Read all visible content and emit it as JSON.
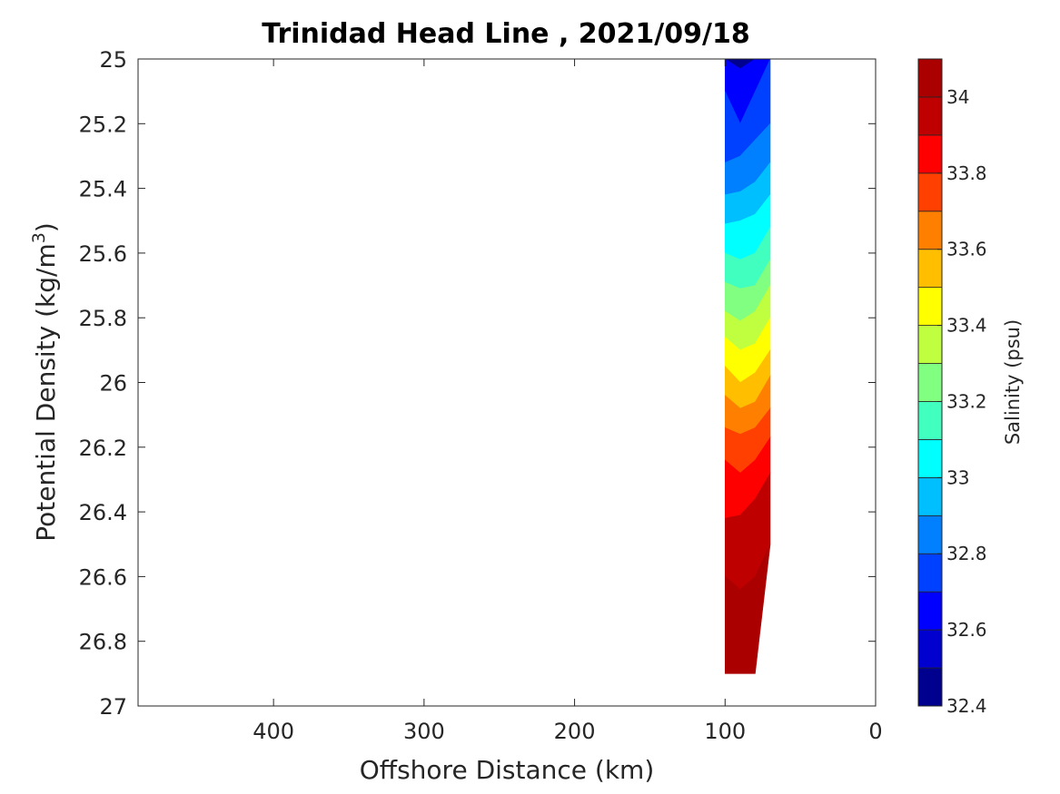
{
  "chart_data": {
    "type": "heatmap",
    "title": "Trinidad Head Line , 2021/09/18",
    "xlabel": "Offshore Distance (km)",
    "ylabel": "Potential Density (kg/m3)",
    "ylabel_parts": {
      "main": "Potential Density (kg/m",
      "sup": "3",
      "close": ")"
    },
    "xlim": [
      490,
      0
    ],
    "ylim": [
      25,
      27
    ],
    "x_reversed": true,
    "y_reversed": true,
    "xticks": [
      400,
      300,
      200,
      100,
      0
    ],
    "xtick_labels": [
      "400",
      "300",
      "200",
      "100",
      "0"
    ],
    "yticks": [
      25,
      25.2,
      25.4,
      25.6,
      25.8,
      26,
      26.2,
      26.4,
      26.6,
      26.8,
      27
    ],
    "ytick_labels": [
      "25",
      "25.2",
      "25.4",
      "25.6",
      "25.8",
      "26",
      "26.2",
      "26.4",
      "26.6",
      "26.8",
      "27"
    ],
    "grid": false,
    "stations_x_km": [
      100,
      90,
      80,
      70
    ],
    "density_bottom_kg_m3": [
      26.9,
      26.9,
      26.9,
      26.5
    ],
    "contour_levels": [
      32.4,
      32.5,
      32.6,
      32.7,
      32.8,
      32.9,
      33.0,
      33.1,
      33.2,
      33.3,
      33.4,
      33.5,
      33.6,
      33.7,
      33.8,
      33.9,
      34.0,
      34.1
    ],
    "contour_colors": [
      "#00008f",
      "#0000cf",
      "#0000ff",
      "#0040ff",
      "#0080ff",
      "#00bfff",
      "#00ffff",
      "#40ffbf",
      "#80ff80",
      "#bfff40",
      "#ffff00",
      "#ffbf00",
      "#ff8000",
      "#ff4000",
      "#ff0000",
      "#bf0000",
      "#aa0000"
    ],
    "band_boundaries": [
      {
        "level": 32.6,
        "density": [
          25.0,
          25.03,
          25.0,
          25.0
        ]
      },
      {
        "level": 32.7,
        "density": [
          25.1,
          25.2,
          25.1,
          25.0
        ]
      },
      {
        "level": 32.8,
        "density": [
          25.32,
          25.3,
          25.25,
          25.2
        ]
      },
      {
        "level": 32.9,
        "density": [
          25.42,
          25.41,
          25.38,
          25.32
        ]
      },
      {
        "level": 33.0,
        "density": [
          25.51,
          25.5,
          25.48,
          25.42
        ]
      },
      {
        "level": 33.1,
        "density": [
          25.6,
          25.62,
          25.6,
          25.52
        ]
      },
      {
        "level": 33.2,
        "density": [
          25.69,
          25.71,
          25.7,
          25.62
        ]
      },
      {
        "level": 33.3,
        "density": [
          25.78,
          25.81,
          25.78,
          25.7
        ]
      },
      {
        "level": 33.4,
        "density": [
          25.86,
          25.9,
          25.88,
          25.8
        ]
      },
      {
        "level": 33.5,
        "density": [
          25.95,
          26.0,
          25.97,
          25.9
        ]
      },
      {
        "level": 33.6,
        "density": [
          26.04,
          26.08,
          26.06,
          25.98
        ]
      },
      {
        "level": 33.7,
        "density": [
          26.14,
          26.16,
          26.14,
          26.08
        ]
      },
      {
        "level": 33.8,
        "density": [
          26.24,
          26.28,
          26.24,
          26.17
        ]
      },
      {
        "level": 33.9,
        "density": [
          26.42,
          26.41,
          26.36,
          26.28
        ]
      },
      {
        "level": 34.0,
        "density": [
          26.6,
          26.64,
          26.6,
          26.5
        ]
      }
    ],
    "colorbar": {
      "label": "Salinity (psu)",
      "range": [
        32.4,
        34.1
      ],
      "ticks": [
        32.4,
        32.6,
        32.8,
        33.0,
        33.2,
        33.4,
        33.6,
        33.8,
        34.0
      ],
      "tick_labels": [
        "32.4",
        "32.6",
        "32.8",
        "33",
        "33.2",
        "33.4",
        "33.6",
        "33.8",
        "34"
      ]
    }
  }
}
